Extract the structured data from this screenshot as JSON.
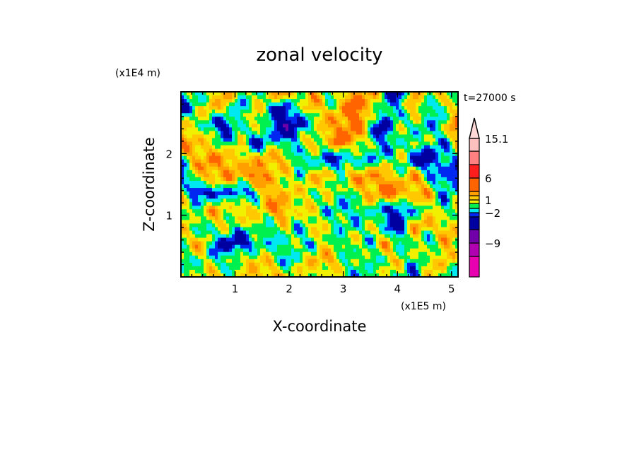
{
  "chart_data": {
    "type": "heatmap",
    "subtype": "filled-contour",
    "title": "zonal velocity",
    "xlabel": "X-coordinate",
    "ylabel": "Z-coordinate",
    "x_scale_label": "(x1E5 m)",
    "y_scale_label": "(x1E4 m)",
    "time_label": "t=27000 s",
    "xlim": [
      0,
      5.12
    ],
    "ylim": [
      0,
      3.0
    ],
    "x_ticks": [
      1,
      2,
      3,
      4,
      5
    ],
    "x_tick_labels": [
      "1",
      "2",
      "3",
      "4",
      "5"
    ],
    "y_ticks": [
      1,
      2
    ],
    "y_tick_labels": [
      "1",
      "2"
    ],
    "minor_tick_step": 0.2,
    "colorbar": {
      "levels": [
        -15,
        -12,
        -9,
        -6,
        -3,
        -2,
        -1,
        0,
        1,
        2,
        3,
        6,
        9,
        12,
        15.1
      ],
      "colors": [
        "#e800b0",
        "#b000b0",
        "#7000a8",
        "#0000a0",
        "#0028f0",
        "#00e8f0",
        "#00f050",
        "#f0f000",
        "#ffc800",
        "#ffa000",
        "#ff6400",
        "#ff1e1e",
        "#ff8080",
        "#ffc0c0"
      ],
      "extend_color": "#ffd8d8",
      "labels": [
        {
          "value": 15.1,
          "text": "15.1"
        },
        {
          "value": 6,
          "text": "6"
        },
        {
          "value": 1,
          "text": "1"
        },
        {
          "value": -2,
          "text": "-2"
        },
        {
          "value": -9,
          "text": "-9"
        }
      ]
    },
    "grid_approx": {
      "note_rows": "top (z=3) to bottom (z=0), columns x=0 to x=5.12, velocity in m/s",
      "values": [
        [
          -2,
          -1,
          0.5,
          2,
          0.5,
          -1,
          2,
          3,
          1,
          2,
          -1,
          0.5,
          3,
          2,
          -1,
          -4,
          2,
          0.5,
          2,
          -1
        ],
        [
          -4,
          -1,
          2,
          0.5,
          -2,
          0.5,
          -1,
          -4,
          -1,
          2,
          0.5,
          2,
          4,
          2,
          -2,
          -1,
          2,
          -1,
          -2,
          2
        ],
        [
          2,
          0.5,
          -2,
          -4,
          -1,
          2,
          -2,
          -5,
          -4,
          -1,
          2,
          3,
          4,
          -1,
          -4,
          0.5,
          -1,
          -2,
          0.5,
          3
        ],
        [
          3,
          2,
          0.5,
          -1,
          0.5,
          -4,
          -1,
          -2,
          -1,
          2,
          0.5,
          4,
          2,
          -1,
          -2,
          -1,
          0.5,
          -1,
          -2,
          2
        ],
        [
          -1,
          2,
          3,
          2,
          2,
          0.5,
          3,
          2,
          -1,
          -2,
          -2,
          -4,
          -1,
          -2,
          -1,
          0.5,
          -4,
          -4,
          -2,
          -1
        ],
        [
          -4,
          0.5,
          3,
          2,
          2,
          4,
          2,
          0.5,
          -1,
          2,
          0.5,
          0.5,
          2,
          3,
          2,
          0.5,
          2,
          -1,
          -2,
          -4
        ],
        [
          3,
          -4,
          -4,
          -1,
          -4,
          -1,
          2,
          2,
          0.5,
          0.5,
          0.5,
          -1,
          0.5,
          2,
          4,
          3,
          2,
          2,
          -2,
          -1
        ],
        [
          -1,
          0.5,
          2,
          0.5,
          2,
          0.5,
          2,
          3,
          0.5,
          0.5,
          -1,
          -2,
          -1,
          -1,
          -2,
          -4,
          -1,
          0.5,
          -1,
          0.5
        ],
        [
          2,
          -2,
          0.5,
          0.5,
          -1,
          0.5,
          -1,
          0.5,
          -1,
          0.5,
          0.5,
          -1,
          -1,
          0.5,
          -2,
          -4,
          2,
          2,
          0.5,
          2
        ],
        [
          0.5,
          2,
          -1,
          -4,
          -4,
          -2,
          -1,
          -1,
          -1,
          -1,
          0.5,
          -1,
          0.5,
          -1,
          2,
          -1,
          0.5,
          -2,
          2,
          0.5
        ],
        [
          -2,
          0.5,
          -1,
          -1,
          0.5,
          2,
          0.5,
          -1,
          -1,
          2,
          2,
          0.5,
          -1,
          -1,
          0.5,
          0.5,
          -1,
          0.5,
          2,
          -1
        ],
        [
          0.5,
          -1,
          2,
          0.5,
          -1,
          2,
          2,
          0.5,
          0.5,
          0.5,
          0.5,
          -1,
          -1,
          -1,
          0.5,
          -1,
          -2,
          0.5,
          0.5,
          -1
        ]
      ]
    }
  }
}
